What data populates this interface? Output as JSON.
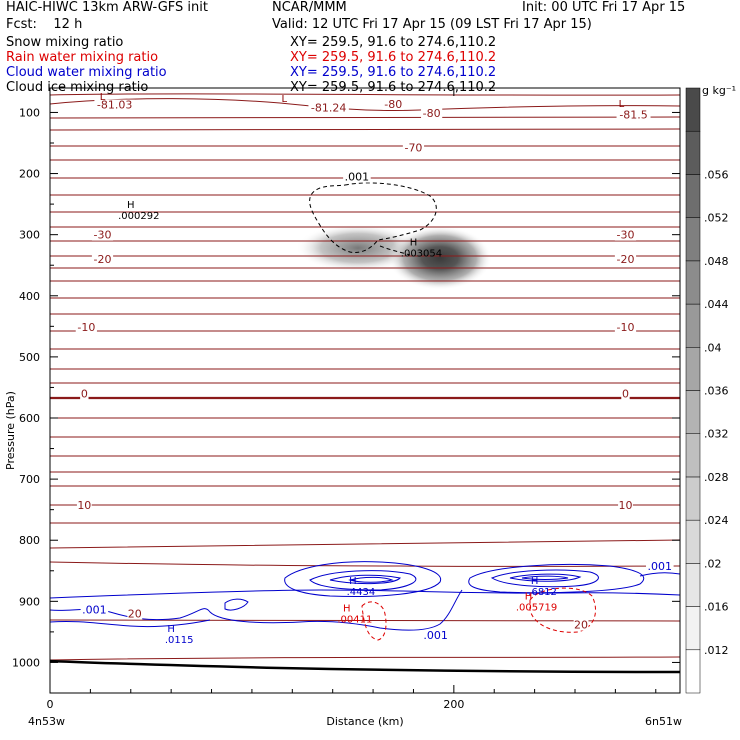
{
  "header": {
    "model": "HAIC-HIWC 13km ARW-GFS init",
    "org": "NCAR/MMM",
    "init": "Init: 00 UTC Fri 17 Apr 15",
    "fcst": "Fcst:    12 h",
    "valid": "Valid: 12 UTC Fri 17 Apr 15 (09 LST Fri 17 Apr 15)",
    "fields": [
      {
        "name": "Snow mixing ratio",
        "xy": "XY= 259.5, 91.6 to 274.6,110.2",
        "color": "#000000"
      },
      {
        "name": "Rain water mixing ratio",
        "xy": "XY= 259.5, 91.6 to 274.6,110.2",
        "color": "#dd0000"
      },
      {
        "name": "Cloud water mixing ratio",
        "xy": "XY= 259.5, 91.6 to 274.6,110.2",
        "color": "#0000cc"
      },
      {
        "name": "Cloud ice mixing ratio",
        "xy": "XY= 259.5, 91.6 to 274.6,110.2",
        "color": "#000000"
      }
    ]
  },
  "chart_data": {
    "type": "heatmap",
    "xlabel": "Distance (km)",
    "ylabel": "Pressure (hPa)",
    "xlim": [
      0,
      312
    ],
    "ylim": [
      1050,
      60
    ],
    "x_ticks": [
      0,
      200
    ],
    "y_ticks": [
      100,
      200,
      300,
      400,
      500,
      600,
      700,
      800,
      900,
      1000
    ],
    "x_endpoints": [
      "4n53w",
      "6n51w"
    ],
    "colorbar": {
      "unit": "g kg⁻¹",
      "ticks": [
        ".012",
        ".016",
        ".02",
        ".024",
        ".028",
        ".032",
        ".036",
        ".04",
        ".044",
        ".048",
        ".052",
        ".056"
      ],
      "values": [
        0.008,
        0.012,
        0.016,
        0.02,
        0.024,
        0.028,
        0.032,
        0.036,
        0.04,
        0.044,
        0.048,
        0.052,
        0.056,
        0.06
      ],
      "colors": [
        "#ffffff",
        "#f2f2f2",
        "#e6e6e6",
        "#d9d9d9",
        "#cccccc",
        "#bfbfbf",
        "#b3b3b3",
        "#a6a6a6",
        "#999999",
        "#8c8c8c",
        "#7f7f7f",
        "#6e6e6e",
        "#5c5c5c",
        "#4a4a4a"
      ]
    },
    "snow_shading_max": {
      "x": 197,
      "p": 315,
      "value": 0.056
    },
    "temperature_labels": [
      {
        "text": "-81.03",
        "x": 32,
        "p": 87
      },
      {
        "text": "-81.24",
        "x": 138,
        "p": 92
      },
      {
        "text": "-80",
        "x": 170,
        "p": 86
      },
      {
        "text": "-80",
        "x": 189,
        "p": 101
      },
      {
        "text": "-81.5",
        "x": 289,
        "p": 103
      },
      {
        "text": "-70",
        "x": 180,
        "p": 157
      },
      {
        "text": "-30",
        "x": 26,
        "p": 300
      },
      {
        "text": "-30",
        "x": 285,
        "p": 300
      },
      {
        "text": "-20",
        "x": 26,
        "p": 340
      },
      {
        "text": "-20",
        "x": 285,
        "p": 340
      },
      {
        "text": "-10",
        "x": 18,
        "p": 451
      },
      {
        "text": "-10",
        "x": 285,
        "p": 451
      },
      {
        "text": "0",
        "x": 17,
        "p": 560
      },
      {
        "text": "0",
        "x": 285,
        "p": 560
      },
      {
        "text": "10",
        "x": 17,
        "p": 742
      },
      {
        "text": "10",
        "x": 285,
        "p": 742
      },
      {
        "text": "20",
        "x": 42,
        "p": 920
      },
      {
        "text": "20",
        "x": 263,
        "p": 938
      }
    ],
    "extrema_labels": [
      {
        "mark": "L",
        "value": "",
        "x": 26,
        "p": 80,
        "color": "#8b0000"
      },
      {
        "mark": "L",
        "value": "",
        "x": 116,
        "p": 83,
        "color": "#8b0000"
      },
      {
        "mark": "L",
        "value": "",
        "x": 283,
        "p": 91,
        "color": "#8b0000"
      },
      {
        "mark": "H",
        "value": ".000292",
        "x": 40,
        "p": 256,
        "color": "#000000"
      },
      {
        "mark": "H",
        "value": ".003054",
        "x": 180,
        "p": 318,
        "color": "#000000"
      },
      {
        "mark": "H",
        "value": ".4434",
        "x": 150,
        "p": 872,
        "color": "#0000cc"
      },
      {
        "mark": "H",
        "value": ".6812",
        "x": 240,
        "p": 872,
        "color": "#0000cc"
      },
      {
        "mark": "H",
        "value": ".0115",
        "x": 60,
        "p": 950,
        "color": "#0000cc"
      },
      {
        "mark": "H",
        "value": ".00411",
        "x": 147,
        "p": 917,
        "color": "#dd0000"
      },
      {
        "mark": "H",
        "value": ".005719",
        "x": 237,
        "p": 897,
        "color": "#dd0000"
      }
    ],
    "contour_labels": [
      {
        "text": ".001",
        "x": 152,
        "p": 205,
        "color": "#000000"
      },
      {
        "text": ".001",
        "x": 302,
        "p": 842,
        "color": "#0000cc"
      },
      {
        "text": ".001",
        "x": 22,
        "p": 913,
        "color": "#0000cc"
      },
      {
        "text": ".001",
        "x": 191,
        "p": 955,
        "color": "#0000cc"
      }
    ]
  }
}
